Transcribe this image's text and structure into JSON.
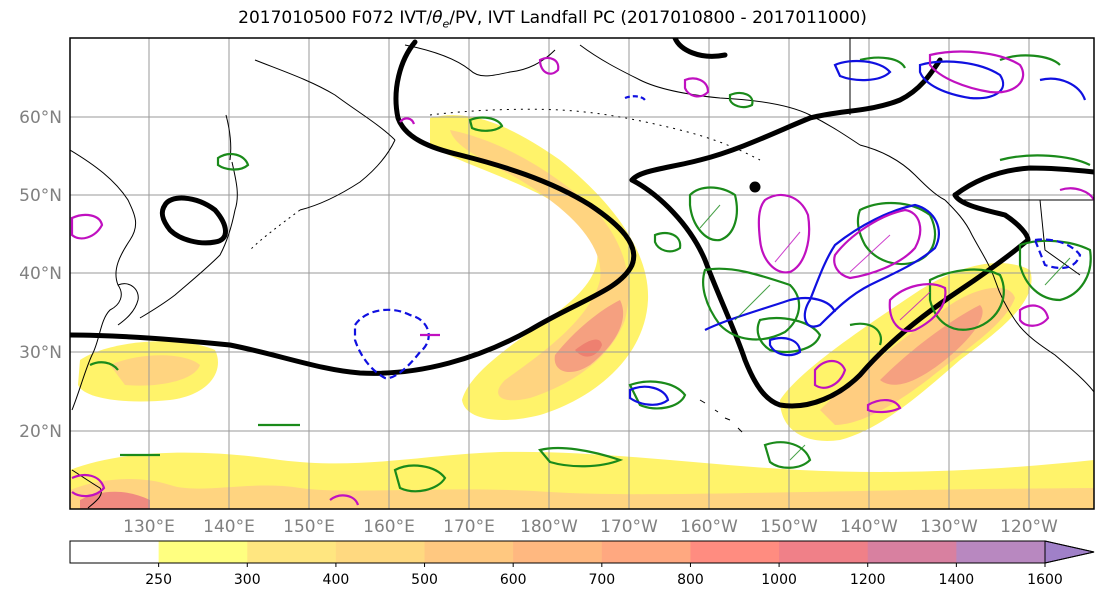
{
  "title_parts": {
    "prefix": "2017010500 F072 IVT/",
    "theta": "θ",
    "sub": "e",
    "suffix": "/PV, IVT Landfall PC (2017010800 - 2017011000)"
  },
  "lat_labels": [
    "60°N",
    "50°N",
    "40°N",
    "30°N",
    "20°N"
  ],
  "lon_labels": [
    "130°E",
    "140°E",
    "150°E",
    "160°E",
    "170°E",
    "180°W",
    "170°W",
    "160°W",
    "150°W",
    "140°W",
    "130°W",
    "120°W"
  ],
  "colorbar": {
    "ticks": [
      "250",
      "300",
      "400",
      "500",
      "600",
      "700",
      "800",
      "1000",
      "1200",
      "1400",
      "1600"
    ],
    "colors": [
      "#ffffff",
      "#ffff80",
      "#ffe680",
      "#ffd980",
      "#ffc880",
      "#ffb880",
      "#ffa880",
      "#ff8c80",
      "#f08088",
      "#d880a0",
      "#b888c0",
      "#a080c8"
    ],
    "extend": "max"
  },
  "contour_colors": {
    "ivt_fill": "#ffd070",
    "ivt_core": "#f08060",
    "pv_thick": "#000000",
    "green": "#1a8a1a",
    "blue": "#1010e0",
    "magenta": "#c010c0"
  }
}
